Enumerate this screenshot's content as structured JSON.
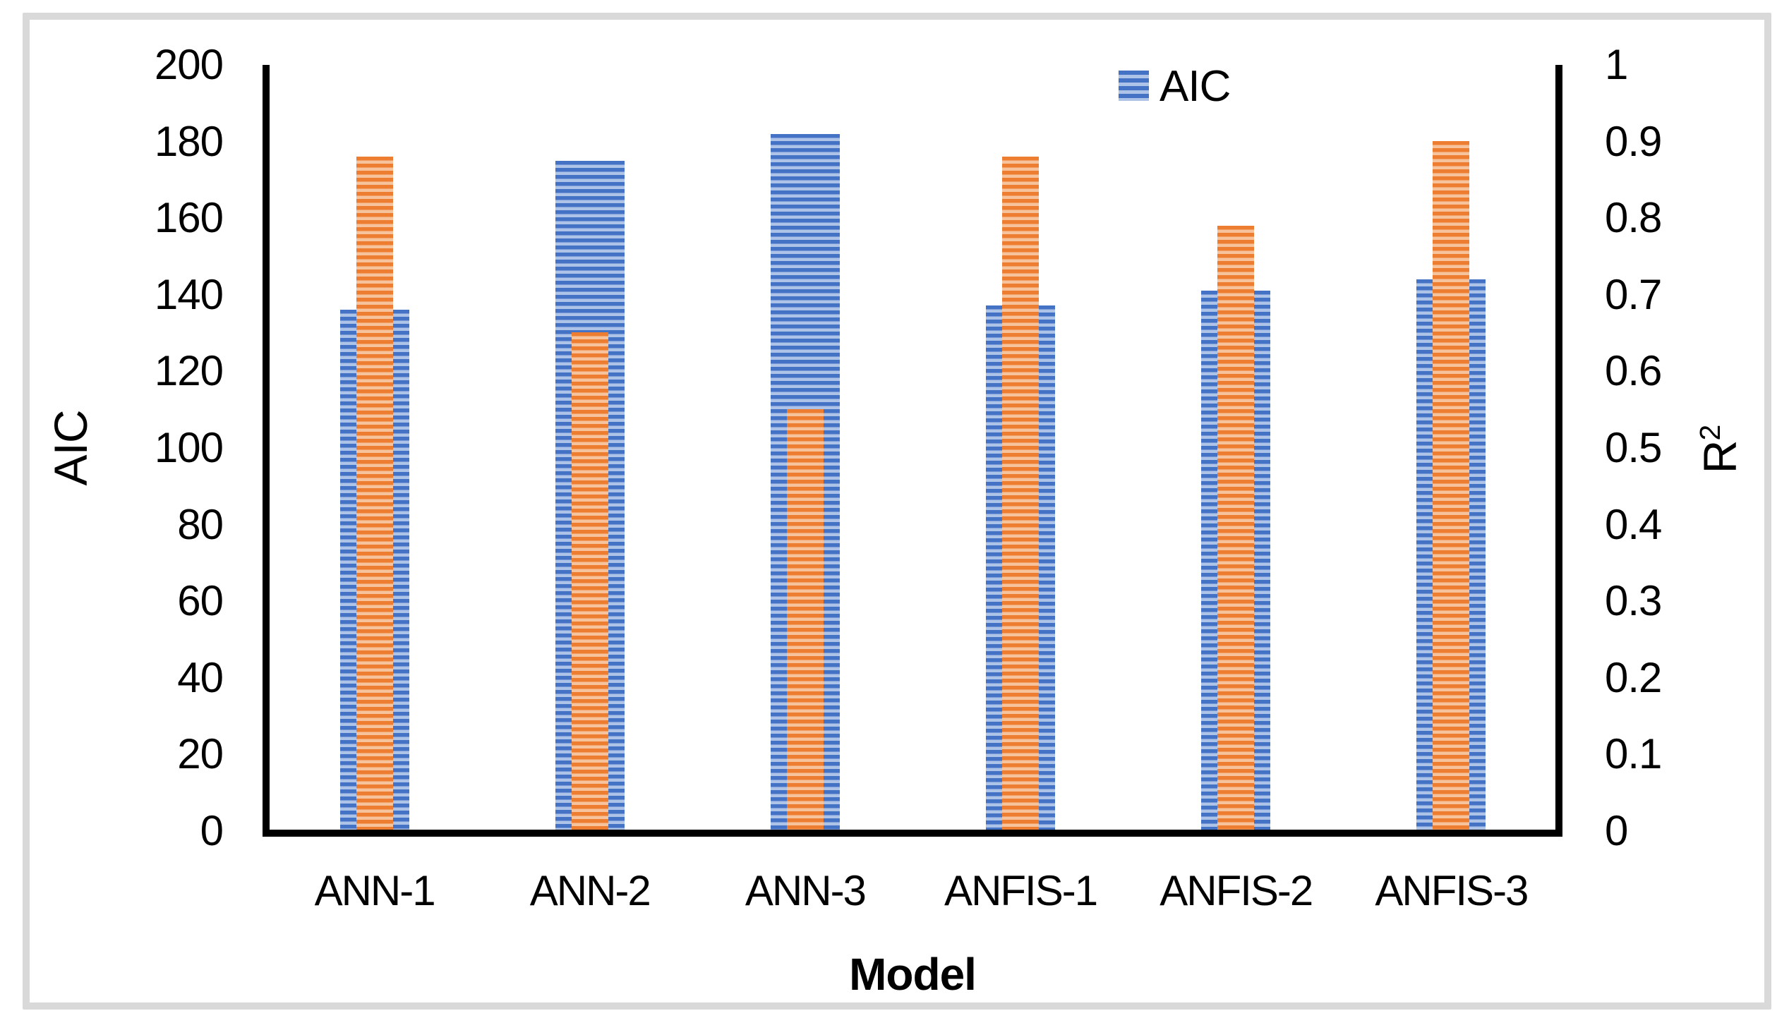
{
  "figure": {
    "background": "#ffffff",
    "border_color": "#d9d9d9"
  },
  "chart_data": {
    "type": "bar",
    "title": "",
    "categories": [
      "ANN-1",
      "ANN-2",
      "ANN-3",
      "ANFIS-1",
      "ANFIS-2",
      "ANFIS-3"
    ],
    "series": [
      {
        "name": "AIC",
        "axis": "left",
        "values": [
          136,
          175,
          182,
          137,
          141,
          144
        ]
      },
      {
        "name": "R²",
        "axis": "right",
        "values": [
          0.88,
          0.65,
          0.55,
          0.88,
          0.79,
          0.9
        ]
      }
    ],
    "xlabel": "Model",
    "left_axis": {
      "title": "AIC",
      "min": 0,
      "max": 200,
      "tick_labels": [
        "200",
        "180",
        "160",
        "140",
        "120",
        "100",
        "80",
        "60",
        "40",
        "20",
        "0"
      ]
    },
    "right_axis": {
      "title_base": "R",
      "title_sup": "2",
      "min": 0,
      "max": 1,
      "tick_labels": [
        "1",
        "0.9",
        "0.8",
        "0.7",
        "0.6",
        "0.5",
        "0.4",
        "0.3",
        "0.2",
        "0.1",
        "0"
      ]
    },
    "legend": {
      "position": "top-right",
      "entries": [
        {
          "label": "AIC",
          "series": "AIC"
        }
      ]
    },
    "grid": false,
    "colors": {
      "aic_stripe_dark": "#4472c4",
      "aic_stripe_light": "#aec3e8",
      "r2_stripe_dark": "#ed7d31",
      "r2_stripe_light": "#f7c39c",
      "axis_line": "#000000"
    }
  }
}
